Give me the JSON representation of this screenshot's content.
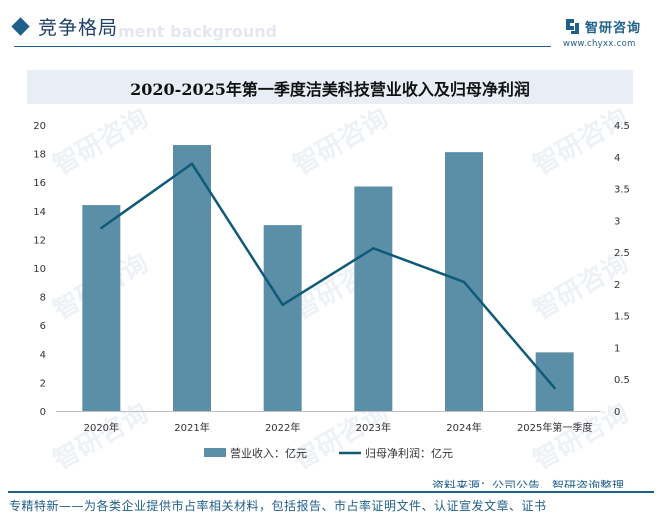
{
  "header": {
    "section_title": "竞争格局",
    "ghost_text": "ment background",
    "logo_text": "智研咨询",
    "logo_url": "www.chyxx.com",
    "watermark": "智研咨询"
  },
  "chart_data": {
    "type": "bar",
    "title": "2020-2025年第一季度洁美科技营业收入及归母净利润",
    "categories": [
      "2020年",
      "2021年",
      "2022年",
      "2023年",
      "2024年",
      "2025年第一季度"
    ],
    "series": [
      {
        "name": "营业收入：亿元",
        "type": "bar",
        "axis": "left",
        "color": "#5b8fa8",
        "values": [
          14.4,
          18.6,
          13.0,
          15.7,
          18.1,
          4.1
        ]
      },
      {
        "name": "归母净利润：亿元",
        "type": "line",
        "axis": "right",
        "color": "#0f5a78",
        "values": [
          2.88,
          3.89,
          1.67,
          2.56,
          2.03,
          0.36
        ]
      }
    ],
    "y_left": {
      "min": 0,
      "max": 20,
      "ticks": [
        "0",
        "2",
        "4",
        "6",
        "8",
        "10",
        "12",
        "14",
        "16",
        "18",
        "20"
      ]
    },
    "y_right": {
      "min": 0,
      "max": 4.5,
      "ticks": [
        "0",
        "0.5",
        "1",
        "1.5",
        "2",
        "2.5",
        "3",
        "3.5",
        "4",
        "4.5"
      ]
    },
    "grid": false,
    "legend": "bottom-center"
  },
  "source": "资料来源：公司公告、智研咨询整理",
  "footer": "专精特新——为各类企业提供市占率相关材料，包括报告、市占率证明文件、认证宣发文章、证书"
}
